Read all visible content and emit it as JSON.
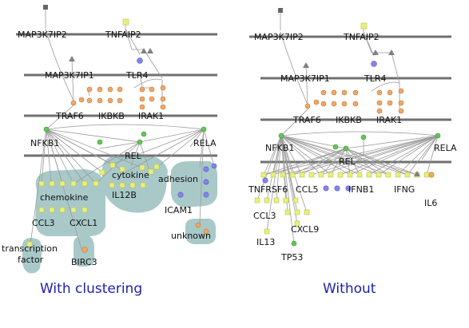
{
  "figure": {
    "colors": {
      "background": "#ffffff",
      "layer_line": "#707070",
      "edge": "#9a9a9a",
      "cluster_fill": "#a9c9c9",
      "node_yellow": "#e8f07a",
      "node_orange": "#f0a766",
      "node_green": "#63c656",
      "node_purple": "#8484ea",
      "node_gray": "#808080",
      "node_dark": "#666666",
      "caption": "#1f1fb0"
    },
    "left": {
      "caption": "With clustering",
      "labels": {
        "map3k7ip2": "MAP3K7IP2",
        "tnfaip2": "TNFAIP2",
        "map3k7ip1": "MAP3K7IP1",
        "tlr4": "TLR4",
        "traf6": "TRAF6",
        "ikbkb": "IKBKB",
        "irak1": "IRAK1",
        "nfkb1": "NFKB1",
        "rel": "REL",
        "rela": "RELA",
        "cytokine": "cytokine",
        "adhesion": "adhesion",
        "il12b": "IL12B",
        "chemokine": "chemokine",
        "icam1": "ICAM1",
        "ccl3": "CCL3",
        "cxcl1": "CXCL1",
        "unknown": "unknown",
        "transcription_factor_1": "transcription",
        "transcription_factor_2": "factor",
        "birc3": "BIRC3"
      }
    },
    "right": {
      "caption": "Without",
      "labels": {
        "map3k7ip2": "MAP3K7IP2",
        "tnfaip2": "TNFAIP2",
        "map3k7ip1": "MAP3K7IP1",
        "tlr4": "TLR4",
        "traf6": "TRAF6",
        "ikbkb": "IKBKB",
        "irak1": "IRAK1",
        "nfkb1": "NFKB1",
        "rel": "REL",
        "rela": "RELA",
        "tnfrsf6": "TNFRSF6",
        "ccl5": "CCL5",
        "ifnb1": "IFNB1",
        "ifng": "IFNG",
        "il6": "IL6",
        "ccl3": "CCL3",
        "cxcl9": "CXCL9",
        "il13": "IL13",
        "tp53": "TP53"
      }
    }
  }
}
